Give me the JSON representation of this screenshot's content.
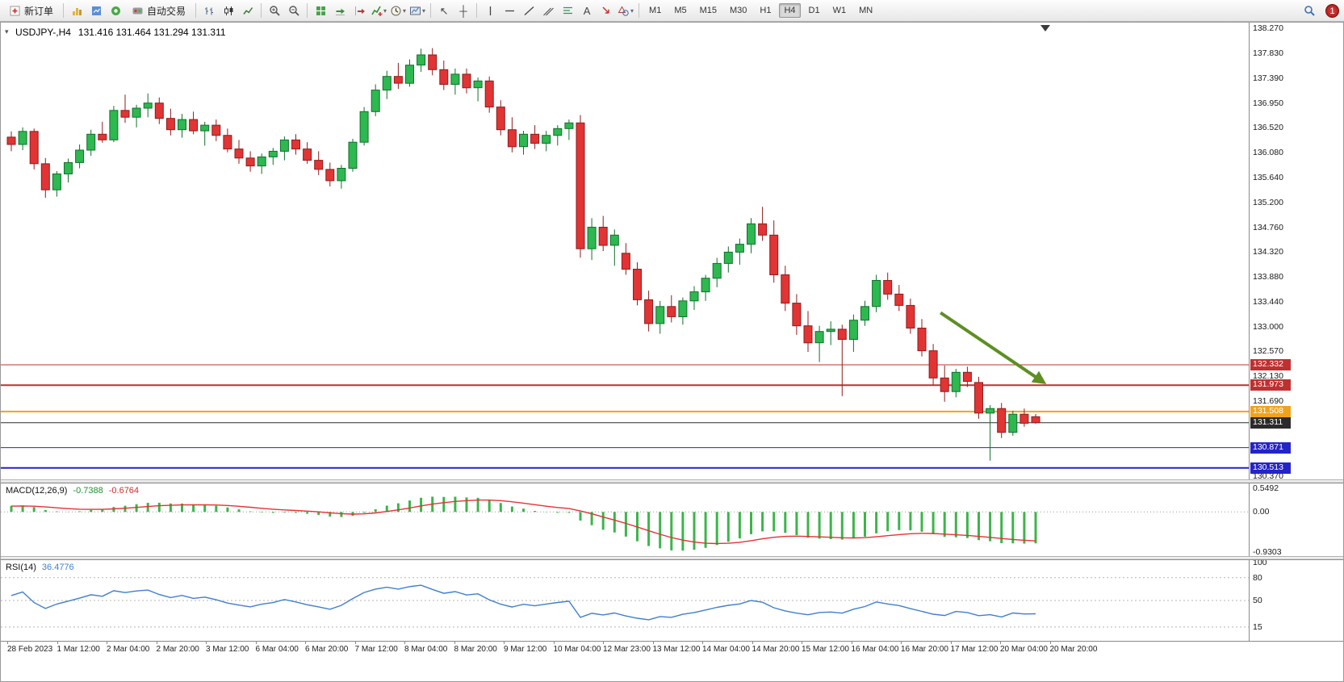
{
  "toolbar": {
    "items": [
      {
        "type": "button",
        "name": "new-order-button",
        "label": "新订单",
        "icon": "new-order-icon"
      },
      {
        "type": "sep"
      },
      {
        "type": "icon",
        "name": "charts-icon"
      },
      {
        "type": "icon",
        "name": "market-watch-icon"
      },
      {
        "type": "icon",
        "name": "navigator-icon"
      },
      {
        "type": "button",
        "name": "autotrading-button",
        "label": "自动交易",
        "icon": "autotrading-icon"
      },
      {
        "type": "sep"
      },
      {
        "type": "icon",
        "name": "bar-chart-icon"
      },
      {
        "type": "icon",
        "name": "candlestick-chart-icon"
      },
      {
        "type": "icon",
        "name": "line-chart-icon"
      },
      {
        "type": "sep"
      },
      {
        "type": "icon",
        "name": "zoom-in-icon"
      },
      {
        "type": "icon",
        "name": "zoom-out-icon"
      },
      {
        "type": "sep"
      },
      {
        "type": "icon",
        "name": "tile-windows-icon"
      },
      {
        "type": "icon",
        "name": "auto-scroll-icon"
      },
      {
        "type": "icon",
        "name": "chart-shift-icon"
      },
      {
        "type": "icon",
        "name": "indicators-icon",
        "caret": true
      },
      {
        "type": "icon",
        "name": "periods-icon",
        "caret": true
      },
      {
        "type": "icon",
        "name": "templates-icon",
        "caret": true
      },
      {
        "type": "sep"
      },
      {
        "type": "icon",
        "name": "cursor-icon"
      },
      {
        "type": "icon",
        "name": "crosshair-icon"
      },
      {
        "type": "sep"
      },
      {
        "type": "icon",
        "name": "vertical-line-icon"
      },
      {
        "type": "icon",
        "name": "horizontal-line-icon"
      },
      {
        "type": "icon",
        "name": "trendline-icon"
      },
      {
        "type": "icon",
        "name": "channel-icon"
      },
      {
        "type": "icon",
        "name": "fibonacci-icon"
      },
      {
        "type": "icon",
        "name": "text-icon"
      },
      {
        "type": "icon",
        "name": "arrows-icon"
      },
      {
        "type": "icon",
        "name": "shapes-icon",
        "caret": true
      },
      {
        "type": "sep"
      }
    ],
    "timeframes": [
      "M1",
      "M5",
      "M15",
      "M30",
      "H1",
      "H4",
      "D1",
      "W1",
      "MN"
    ],
    "active_timeframe": "H4",
    "right_icons": [
      "search-icon"
    ],
    "badge": "1"
  },
  "chart": {
    "title": "USDJPY-,H4",
    "ohlc_text": "131.416 131.464 131.294 131.311",
    "one_click_icon": "one-click-trading-toggle",
    "shift_marker_icon": "chart-shift-marker"
  },
  "chart_data": {
    "type": "candlestick",
    "symbol": "USDJPY-",
    "timeframe": "H4",
    "current_ohlc": {
      "open": 131.416,
      "high": 131.464,
      "low": 131.294,
      "close": 131.311
    },
    "y_axis_labels": [
      "138.270",
      "137.830",
      "137.390",
      "136.950",
      "136.520",
      "136.080",
      "135.640",
      "135.200",
      "134.760",
      "134.320",
      "133.880",
      "133.440",
      "133.000",
      "132.570",
      "132.130",
      "131.690",
      "131.250",
      "130.810",
      "130.370"
    ],
    "x_labels": [
      "28 Feb 2023",
      "1 Mar 12:00",
      "2 Mar 04:00",
      "2 Mar 20:00",
      "3 Mar 12:00",
      "6 Mar 04:00",
      "6 Mar 20:00",
      "7 Mar 12:00",
      "8 Mar 04:00",
      "8 Mar 20:00",
      "9 Mar 12:00",
      "10 Mar 04:00",
      "12 Mar 23:00",
      "13 Mar 12:00",
      "14 Mar 04:00",
      "14 Mar 20:00",
      "15 Mar 12:00",
      "16 Mar 04:00",
      "16 Mar 20:00",
      "17 Mar 12:00",
      "20 Mar 04:00",
      "20 Mar 20:00"
    ],
    "candles": [
      [
        136.35,
        136.45,
        136.1,
        136.22
      ],
      [
        136.22,
        136.52,
        136.12,
        136.45
      ],
      [
        136.45,
        136.5,
        135.78,
        135.88
      ],
      [
        135.88,
        135.98,
        135.28,
        135.42
      ],
      [
        135.42,
        135.75,
        135.3,
        135.7
      ],
      [
        135.7,
        135.97,
        135.55,
        135.9
      ],
      [
        135.9,
        136.22,
        135.8,
        136.12
      ],
      [
        136.12,
        136.48,
        136.02,
        136.4
      ],
      [
        136.4,
        136.62,
        136.25,
        136.3
      ],
      [
        136.3,
        136.9,
        136.26,
        136.82
      ],
      [
        136.82,
        137.1,
        136.6,
        136.7
      ],
      [
        136.7,
        136.92,
        136.52,
        136.86
      ],
      [
        136.86,
        137.12,
        136.7,
        136.95
      ],
      [
        136.95,
        137.05,
        136.58,
        136.68
      ],
      [
        136.68,
        136.85,
        136.38,
        136.48
      ],
      [
        136.48,
        136.76,
        136.34,
        136.66
      ],
      [
        136.66,
        136.8,
        136.4,
        136.46
      ],
      [
        136.46,
        136.62,
        136.2,
        136.56
      ],
      [
        136.56,
        136.66,
        136.28,
        136.38
      ],
      [
        136.38,
        136.5,
        136.08,
        136.14
      ],
      [
        136.14,
        136.3,
        135.88,
        135.98
      ],
      [
        135.98,
        136.1,
        135.74,
        135.84
      ],
      [
        135.84,
        136.06,
        135.7,
        136.0
      ],
      [
        136.0,
        136.16,
        135.86,
        136.1
      ],
      [
        136.1,
        136.36,
        135.94,
        136.3
      ],
      [
        136.3,
        136.4,
        136.04,
        136.14
      ],
      [
        136.14,
        136.26,
        135.88,
        135.94
      ],
      [
        135.94,
        136.1,
        135.68,
        135.78
      ],
      [
        135.78,
        135.9,
        135.48,
        135.58
      ],
      [
        135.58,
        135.86,
        135.44,
        135.8
      ],
      [
        135.8,
        136.32,
        135.74,
        136.26
      ],
      [
        136.26,
        136.88,
        136.2,
        136.8
      ],
      [
        136.8,
        137.28,
        136.72,
        137.18
      ],
      [
        137.18,
        137.52,
        137.02,
        137.42
      ],
      [
        137.42,
        137.66,
        137.2,
        137.3
      ],
      [
        137.3,
        137.72,
        137.24,
        137.62
      ],
      [
        137.62,
        137.91,
        137.5,
        137.8
      ],
      [
        137.8,
        137.92,
        137.44,
        137.54
      ],
      [
        137.54,
        137.7,
        137.18,
        137.28
      ],
      [
        137.28,
        137.56,
        137.1,
        137.46
      ],
      [
        137.46,
        137.56,
        137.12,
        137.22
      ],
      [
        137.22,
        137.4,
        136.98,
        137.34
      ],
      [
        137.34,
        137.42,
        136.78,
        136.88
      ],
      [
        136.88,
        137.0,
        136.38,
        136.48
      ],
      [
        136.48,
        136.7,
        136.08,
        136.18
      ],
      [
        136.18,
        136.46,
        136.04,
        136.4
      ],
      [
        136.4,
        136.56,
        136.14,
        136.24
      ],
      [
        136.24,
        136.46,
        136.1,
        136.38
      ],
      [
        136.38,
        136.56,
        136.2,
        136.5
      ],
      [
        136.5,
        136.66,
        136.3,
        136.6
      ],
      [
        136.6,
        136.74,
        134.22,
        134.38
      ],
      [
        134.38,
        134.92,
        134.18,
        134.76
      ],
      [
        134.76,
        134.96,
        134.34,
        134.44
      ],
      [
        134.44,
        134.72,
        134.08,
        134.62
      ],
      [
        134.3,
        134.48,
        133.92,
        134.02
      ],
      [
        134.02,
        134.14,
        133.38,
        133.48
      ],
      [
        133.48,
        133.64,
        132.92,
        133.06
      ],
      [
        133.06,
        133.46,
        132.88,
        133.36
      ],
      [
        133.36,
        133.56,
        133.08,
        133.18
      ],
      [
        133.18,
        133.52,
        133.04,
        133.46
      ],
      [
        133.46,
        133.72,
        133.3,
        133.62
      ],
      [
        133.62,
        133.92,
        133.46,
        133.86
      ],
      [
        133.86,
        134.22,
        133.7,
        134.12
      ],
      [
        134.12,
        134.42,
        133.96,
        134.32
      ],
      [
        134.32,
        134.56,
        134.1,
        134.46
      ],
      [
        134.46,
        134.92,
        134.3,
        134.82
      ],
      [
        134.82,
        135.12,
        134.52,
        134.62
      ],
      [
        134.62,
        134.88,
        133.78,
        133.92
      ],
      [
        133.92,
        134.08,
        133.28,
        133.42
      ],
      [
        133.42,
        133.58,
        132.86,
        133.02
      ],
      [
        133.02,
        133.28,
        132.56,
        132.72
      ],
      [
        132.72,
        133.02,
        132.38,
        132.92
      ],
      [
        132.92,
        133.1,
        132.68,
        132.96
      ],
      [
        132.96,
        133.04,
        131.78,
        132.78
      ],
      [
        132.78,
        133.22,
        132.56,
        133.12
      ],
      [
        133.12,
        133.46,
        133.02,
        133.36
      ],
      [
        133.36,
        133.92,
        133.26,
        133.82
      ],
      [
        133.82,
        133.96,
        133.48,
        133.58
      ],
      [
        133.58,
        133.74,
        133.28,
        133.38
      ],
      [
        133.38,
        133.5,
        132.88,
        132.98
      ],
      [
        132.98,
        133.14,
        132.48,
        132.58
      ],
      [
        132.58,
        132.7,
        131.98,
        132.1
      ],
      [
        132.1,
        132.32,
        131.68,
        131.86
      ],
      [
        131.86,
        132.26,
        131.76,
        132.2
      ],
      [
        132.2,
        132.3,
        131.94,
        132.04
      ],
      [
        132.02,
        132.12,
        131.38,
        131.48
      ],
      [
        131.48,
        131.62,
        130.64,
        131.56
      ],
      [
        131.56,
        131.66,
        131.04,
        131.14
      ],
      [
        131.14,
        131.52,
        131.08,
        131.46
      ],
      [
        131.46,
        131.56,
        131.24,
        131.3
      ],
      [
        131.416,
        131.464,
        131.294,
        131.311
      ]
    ],
    "levels": [
      {
        "price": 132.332,
        "color": "#c03030",
        "width": 1
      },
      {
        "price": 131.973,
        "color": "#c03030",
        "width": 2
      },
      {
        "price": 131.508,
        "color": "#efa31d",
        "width": 2
      },
      {
        "price": 131.311,
        "color": "#2b2b2b",
        "width": 1
      },
      {
        "price": 130.871,
        "color": "#2424c8",
        "width": 1
      },
      {
        "price": 130.513,
        "color": "#2424c8",
        "width": 2
      }
    ],
    "trend_arrow": {
      "from_index": 82,
      "from_price": 133.25,
      "to_index": 91,
      "to_price": 132.03,
      "color": "#5d8f23",
      "direction": "down-right"
    },
    "colors": {
      "up": "#2db850",
      "up_border": "#11702c",
      "down": "#e23434",
      "down_border": "#8f1d1d"
    },
    "axis_range": [
      130.37,
      138.27
    ],
    "grid": false,
    "indicators": {
      "macd": {
        "label": "MACD(12,26,9)",
        "params": [
          12,
          26,
          9
        ],
        "value_main": -0.7388,
        "value_signal": -0.6764,
        "axis_labels": [
          "0.5492",
          "0.00",
          "-0.9303"
        ],
        "axis_range": [
          -0.9303,
          0.5492
        ],
        "histogram_color": "#3cb54a",
        "signal_color": "#e23434"
      },
      "rsi": {
        "label": "RSI(14)",
        "params": [
          14
        ],
        "value": 36.4776,
        "axis_labels": [
          "100",
          "80",
          "50",
          "15"
        ],
        "levels": [
          80,
          50,
          15
        ],
        "line_color": "#3f7fce"
      }
    }
  }
}
